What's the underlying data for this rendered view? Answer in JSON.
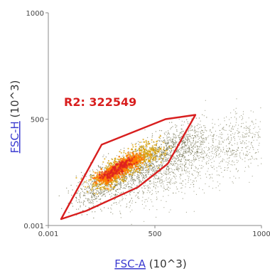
{
  "chart_data": {
    "type": "scatter",
    "title": "",
    "xlabel": {
      "link": "FSC-A",
      "unit": " (10^3)"
    },
    "ylabel": {
      "link": "FSC-H",
      "unit": " (10^3)"
    },
    "x_ticks": [
      "0.001",
      "500",
      "1000"
    ],
    "y_ticks": [
      "0.001",
      "500",
      "1000"
    ],
    "xlim": [
      0,
      1000
    ],
    "ylim": [
      0,
      1000
    ],
    "grid": false,
    "density_colors": {
      "low": "#5a5a32",
      "mid": "#d9a000",
      "high": "#ff7a00",
      "peak": "#e02020"
    },
    "gate": {
      "label": "R2: 322549",
      "color": "#d81e1e",
      "vertices": [
        [
          60,
          30
        ],
        [
          250,
          380
        ],
        [
          550,
          500
        ],
        [
          690,
          520
        ],
        [
          560,
          290
        ],
        [
          420,
          180
        ],
        [
          180,
          70
        ],
        [
          60,
          30
        ]
      ]
    }
  }
}
